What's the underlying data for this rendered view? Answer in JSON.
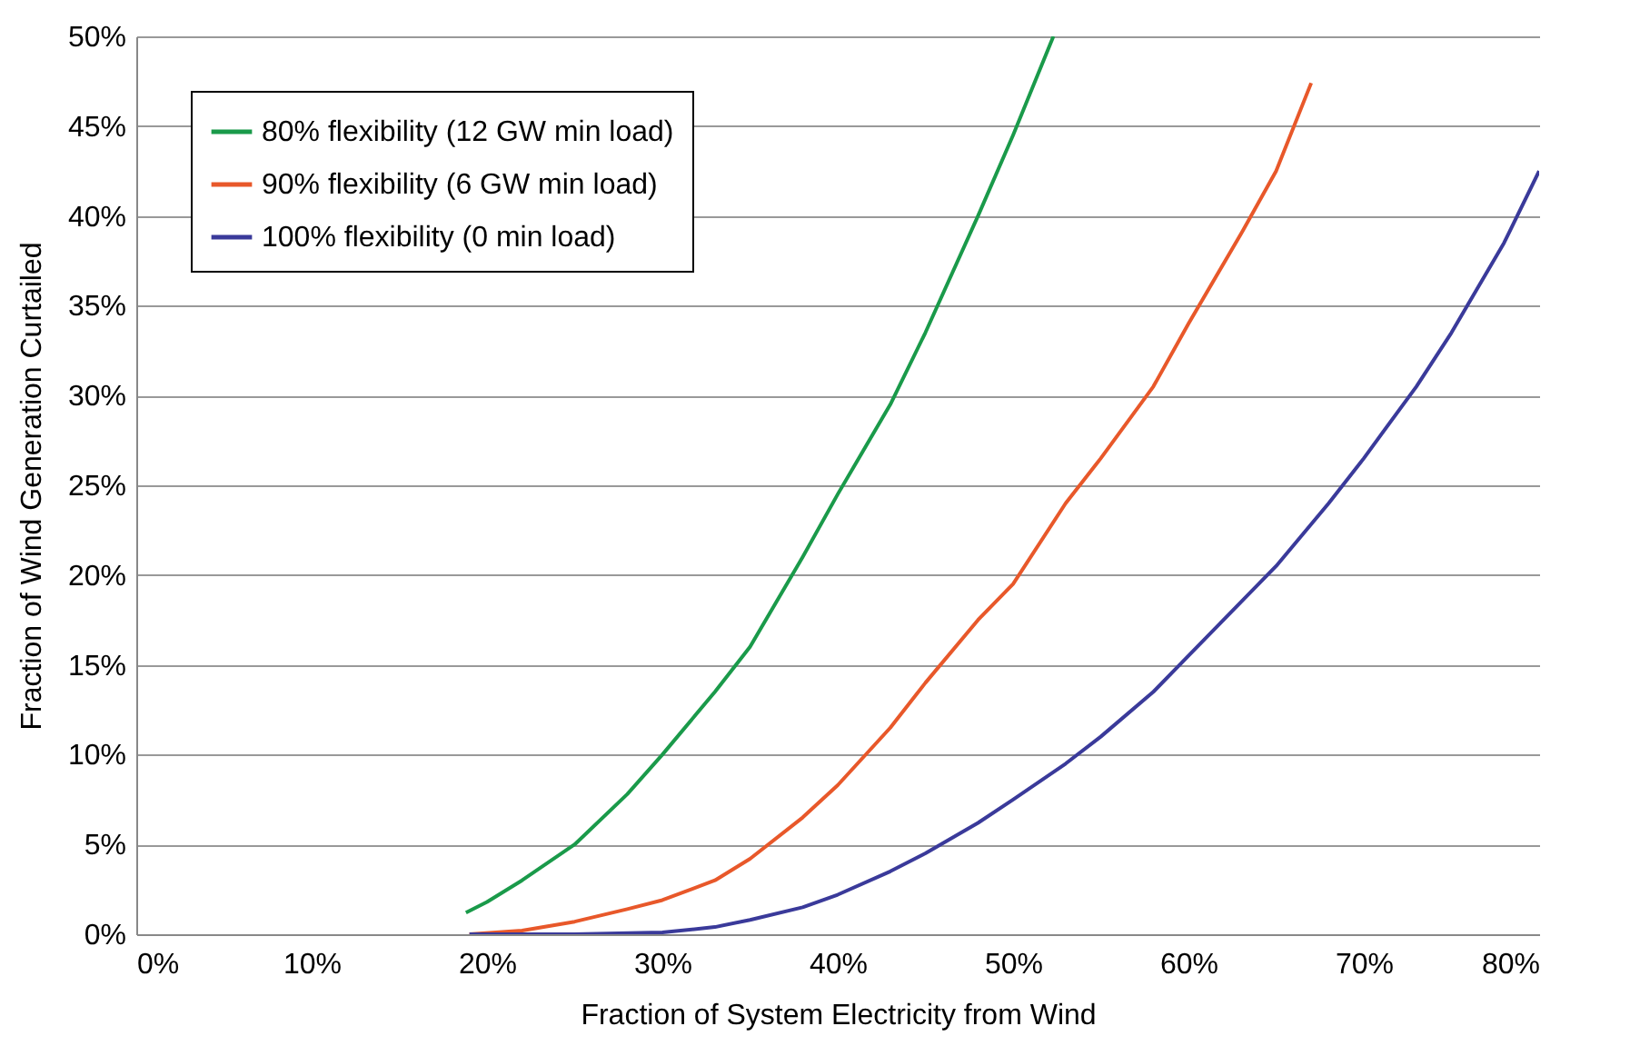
{
  "chart_data": {
    "type": "line",
    "xlabel": "Fraction of System Electricity from Wind",
    "ylabel": "Fraction of Wind Generation Curtailed",
    "xlim": [
      0,
      80
    ],
    "ylim": [
      0,
      50
    ],
    "xticks": [
      {
        "value": 0,
        "label": "0%"
      },
      {
        "value": 10,
        "label": "10%"
      },
      {
        "value": 20,
        "label": "20%"
      },
      {
        "value": 30,
        "label": "30%"
      },
      {
        "value": 40,
        "label": "40%"
      },
      {
        "value": 50,
        "label": "50%"
      },
      {
        "value": 60,
        "label": "60%"
      },
      {
        "value": 70,
        "label": "70%"
      },
      {
        "value": 80,
        "label": "80%"
      }
    ],
    "yticks": [
      {
        "value": 0,
        "label": "0%"
      },
      {
        "value": 5,
        "label": "5%"
      },
      {
        "value": 10,
        "label": "10%"
      },
      {
        "value": 15,
        "label": "15%"
      },
      {
        "value": 20,
        "label": "20%"
      },
      {
        "value": 25,
        "label": "25%"
      },
      {
        "value": 30,
        "label": "30%"
      },
      {
        "value": 35,
        "label": "35%"
      },
      {
        "value": 40,
        "label": "40%"
      },
      {
        "value": 45,
        "label": "45%"
      },
      {
        "value": 50,
        "label": "50%"
      }
    ],
    "grid": "y",
    "legend": "top left",
    "marker": "none",
    "line_style": "solid",
    "series": [
      {
        "name": "80% flexibility (12 GW min load)",
        "color": "#1a9a4a",
        "x": [
          18.8,
          20,
          22,
          25,
          28,
          30,
          33,
          35,
          38,
          40,
          43,
          45,
          48,
          50,
          52.3
        ],
        "values": [
          1.2,
          1.8,
          3,
          5,
          7.8,
          10,
          13.5,
          16,
          21,
          24.5,
          29.5,
          33.5,
          40,
          44.5,
          50
        ]
      },
      {
        "name": "90% flexibility (6 GW min load)",
        "color": "#e8582a",
        "x": [
          19,
          22,
          25,
          28,
          30,
          33,
          35,
          38,
          40,
          43,
          45,
          48,
          50,
          53,
          55,
          58,
          60,
          63,
          65,
          67
        ],
        "values": [
          0,
          0.2,
          0.7,
          1.4,
          1.9,
          3,
          4.2,
          6.5,
          8.3,
          11.5,
          14,
          17.5,
          19.5,
          24,
          26.5,
          30.5,
          34,
          39,
          42.5,
          47.4
        ]
      },
      {
        "name": "100% flexibility (0 min load)",
        "color": "#3a3a9a",
        "x": [
          19,
          25,
          30,
          33,
          35,
          38,
          40,
          43,
          45,
          48,
          50,
          53,
          55,
          58,
          60,
          63,
          65,
          68,
          70,
          73,
          75,
          78,
          80
        ],
        "values": [
          0,
          0,
          0.1,
          0.4,
          0.8,
          1.5,
          2.2,
          3.5,
          4.5,
          6.2,
          7.5,
          9.5,
          11,
          13.5,
          15.5,
          18.5,
          20.5,
          24,
          26.5,
          30.5,
          33.5,
          38.5,
          42.5
        ]
      }
    ]
  }
}
